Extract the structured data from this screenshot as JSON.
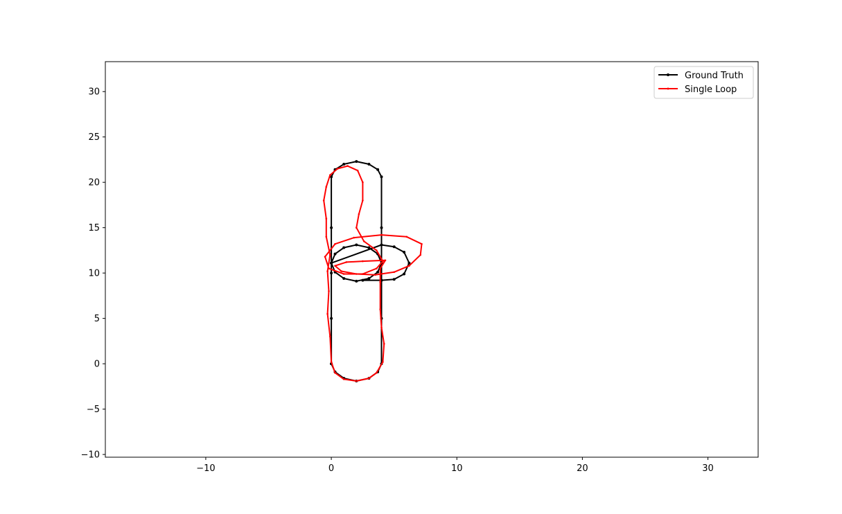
{
  "chart_data": {
    "type": "line",
    "title": "",
    "xlabel": "",
    "ylabel": "",
    "xlim": [
      -18,
      34
    ],
    "ylim": [
      -10.3,
      33.3
    ],
    "x_ticks": [
      -10,
      0,
      10,
      20,
      30
    ],
    "y_ticks": [
      -10,
      -5,
      0,
      5,
      10,
      15,
      20,
      25,
      30
    ],
    "x_tick_labels": [
      "−10",
      "0",
      "10",
      "20",
      "30"
    ],
    "y_tick_labels": [
      "−10",
      "−5",
      "0",
      "5",
      "10",
      "15",
      "20",
      "25",
      "30"
    ],
    "grid": false,
    "legend_position": "top-right",
    "series": [
      {
        "name": "Ground Truth",
        "color": "#000000",
        "points": [
          [
            0,
            0
          ],
          [
            0,
            5
          ],
          [
            0,
            10
          ],
          [
            0,
            15
          ],
          [
            0,
            20.6
          ],
          [
            0.3,
            21.4
          ],
          [
            1.0,
            22.0
          ],
          [
            2.0,
            22.3
          ],
          [
            3.0,
            22.0
          ],
          [
            3.7,
            21.4
          ],
          [
            4.0,
            20.6
          ],
          [
            4.0,
            15
          ],
          [
            4.0,
            9.2
          ],
          [
            4.0,
            5
          ],
          [
            4.0,
            0
          ],
          [
            3.7,
            -0.9
          ],
          [
            3.0,
            -1.6
          ],
          [
            2.0,
            -1.9
          ],
          [
            1.0,
            -1.6
          ],
          [
            0.3,
            -0.9
          ],
          [
            0,
            0
          ],
          [
            0,
            11.1
          ],
          [
            0.3,
            12.1
          ],
          [
            1.0,
            12.8
          ],
          [
            2.0,
            13.1
          ],
          [
            3.0,
            12.8
          ],
          [
            3.7,
            12.1
          ],
          [
            4.0,
            11.1
          ],
          [
            3.7,
            10.1
          ],
          [
            3.0,
            9.4
          ],
          [
            2.0,
            9.1
          ],
          [
            1.0,
            9.4
          ],
          [
            0.3,
            10.1
          ],
          [
            0,
            11.1
          ],
          [
            4.0,
            13.1
          ],
          [
            5.0,
            12.9
          ],
          [
            5.8,
            12.3
          ],
          [
            6.2,
            11.1
          ],
          [
            5.8,
            9.9
          ],
          [
            5.0,
            9.3
          ],
          [
            4.0,
            9.2
          ],
          [
            2.5,
            9.2
          ]
        ]
      },
      {
        "name": "Single Loop",
        "color": "#ff0000",
        "points": [
          [
            4.2,
            2.2
          ],
          [
            4.1,
            0.2
          ],
          [
            3.6,
            -1.0
          ],
          [
            3.0,
            -1.6
          ],
          [
            2.0,
            -1.9
          ],
          [
            1.0,
            -1.7
          ],
          [
            0.3,
            -1.0
          ],
          [
            0.0,
            0.2
          ],
          [
            -0.1,
            3.0
          ],
          [
            -0.3,
            5.5
          ],
          [
            -0.2,
            8.0
          ],
          [
            -0.3,
            10.2
          ],
          [
            -0.1,
            12.0
          ],
          [
            -0.4,
            14.0
          ],
          [
            -0.4,
            16.0
          ],
          [
            -0.6,
            18.0
          ],
          [
            -0.4,
            19.5
          ],
          [
            -0.1,
            20.8
          ],
          [
            0.5,
            21.5
          ],
          [
            1.3,
            21.8
          ],
          [
            2.1,
            21.3
          ],
          [
            2.5,
            20.0
          ],
          [
            2.5,
            18.0
          ],
          [
            2.2,
            16.5
          ],
          [
            2.0,
            15.0
          ],
          [
            2.6,
            13.5
          ],
          [
            3.6,
            12.5
          ],
          [
            4.1,
            11.3
          ],
          [
            3.6,
            10.5
          ],
          [
            2.5,
            9.9
          ],
          [
            1.0,
            9.9
          ],
          [
            -0.2,
            10.5
          ],
          [
            -0.5,
            11.8
          ],
          [
            0.3,
            13.2
          ],
          [
            1.8,
            13.9
          ],
          [
            4.0,
            14.2
          ],
          [
            6.0,
            14.0
          ],
          [
            7.2,
            13.2
          ],
          [
            7.1,
            12.0
          ],
          [
            6.2,
            10.8
          ],
          [
            5.0,
            10.1
          ],
          [
            3.5,
            9.8
          ],
          [
            2.0,
            9.9
          ],
          [
            0.8,
            10.2
          ],
          [
            0.3,
            10.8
          ],
          [
            1.2,
            11.2
          ],
          [
            2.5,
            11.3
          ],
          [
            4.3,
            11.4
          ],
          [
            3.9,
            10.5
          ],
          [
            3.9,
            9.0
          ],
          [
            3.9,
            6.0
          ],
          [
            4.0,
            4.0
          ],
          [
            4.2,
            2.2
          ]
        ]
      }
    ]
  }
}
